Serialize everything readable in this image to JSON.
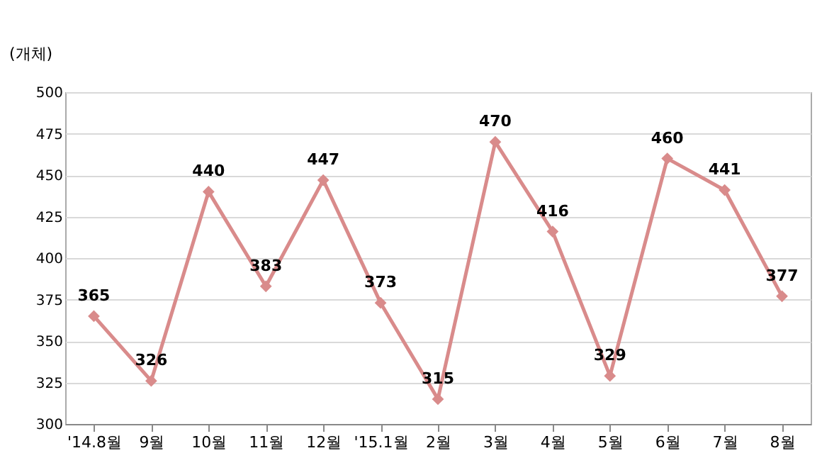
{
  "chart_data": {
    "type": "line",
    "ylabel": "(개체)",
    "categories": [
      "'14.8월",
      "9월",
      "10월",
      "11월",
      "12월",
      "'15.1월",
      "2월",
      "3월",
      "4월",
      "5월",
      "6월",
      "7월",
      "8월"
    ],
    "series": [
      {
        "color": "#d98b8b",
        "values": [
          365,
          326,
          440,
          383,
          447,
          373,
          315,
          470,
          416,
          329,
          460,
          441,
          377
        ]
      }
    ],
    "ylim": [
      300,
      500
    ],
    "yticks": [
      300,
      325,
      350,
      375,
      400,
      425,
      450,
      475,
      500
    ],
    "grid": "y",
    "marker": "diamond",
    "line_style": "solid",
    "data_labels": true
  }
}
